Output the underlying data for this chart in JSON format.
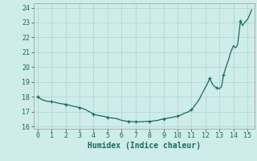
{
  "xlabel": "Humidex (Indice chaleur)",
  "xlim": [
    -0.3,
    15.5
  ],
  "ylim": [
    15.85,
    24.3
  ],
  "xticks": [
    0,
    1,
    2,
    3,
    4,
    5,
    6,
    7,
    8,
    9,
    10,
    11,
    12,
    13,
    14,
    15
  ],
  "yticks": [
    16,
    17,
    18,
    19,
    20,
    21,
    22,
    23,
    24
  ],
  "background_color": "#ceecea",
  "grid_color": "#b2d8d4",
  "line_color": "#1a6b5a",
  "x": [
    0,
    0.15,
    0.3,
    0.5,
    0.7,
    1.0,
    1.3,
    1.6,
    2.0,
    2.4,
    2.8,
    3.0,
    3.2,
    3.4,
    3.6,
    3.8,
    4.0,
    4.2,
    4.5,
    4.8,
    5.0,
    5.3,
    5.6,
    6.0,
    6.2,
    6.5,
    6.8,
    7.0,
    7.2,
    7.5,
    7.8,
    8.0,
    8.3,
    8.6,
    8.9,
    9.0,
    9.2,
    9.5,
    9.8,
    10.0,
    10.3,
    10.5,
    10.8,
    11.0,
    11.15,
    11.3,
    11.5,
    11.65,
    11.8,
    12.0,
    12.15,
    12.3,
    12.5,
    12.65,
    12.8,
    13.0,
    13.15,
    13.3,
    13.5,
    13.65,
    13.8,
    14.0,
    14.15,
    14.3,
    14.5,
    14.65,
    14.8,
    15.0,
    15.15,
    15.3
  ],
  "y": [
    18.0,
    17.9,
    17.82,
    17.75,
    17.7,
    17.68,
    17.62,
    17.55,
    17.5,
    17.4,
    17.32,
    17.28,
    17.22,
    17.15,
    17.05,
    16.95,
    16.85,
    16.78,
    16.72,
    16.68,
    16.62,
    16.58,
    16.55,
    16.42,
    16.38,
    16.35,
    16.33,
    16.32,
    16.32,
    16.33,
    16.35,
    16.35,
    16.38,
    16.42,
    16.5,
    16.52,
    16.55,
    16.6,
    16.65,
    16.7,
    16.8,
    16.9,
    17.0,
    17.15,
    17.3,
    17.5,
    17.75,
    18.0,
    18.3,
    18.65,
    18.9,
    19.25,
    18.85,
    18.7,
    18.6,
    18.55,
    18.7,
    19.5,
    20.1,
    20.5,
    21.0,
    21.45,
    21.3,
    21.5,
    23.1,
    22.8,
    23.0,
    23.2,
    23.5,
    23.85
  ],
  "marker_x": [
    0,
    1.0,
    2.0,
    3.0,
    4.0,
    5.0,
    6.5,
    7.0,
    8.0,
    9.0,
    10.0,
    11.0,
    12.3,
    12.8,
    13.3,
    14.5
  ],
  "marker_y": [
    18.0,
    17.68,
    17.5,
    17.28,
    16.85,
    16.62,
    16.35,
    16.32,
    16.35,
    16.52,
    16.7,
    17.15,
    19.25,
    18.6,
    19.5,
    23.1
  ]
}
